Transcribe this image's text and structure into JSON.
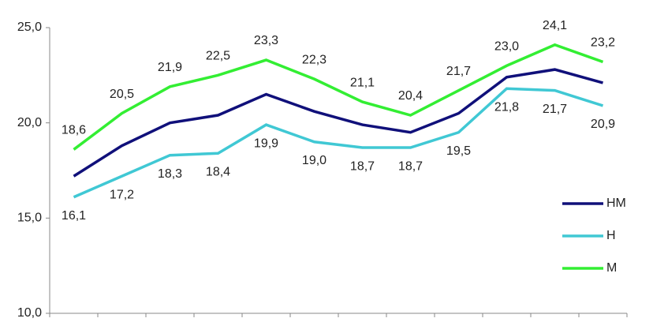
{
  "chart_data": {
    "type": "line",
    "categories": [
      null,
      null,
      null,
      null,
      null,
      null,
      null,
      null,
      null,
      null,
      null,
      null
    ],
    "ylim": [
      10,
      25
    ],
    "yticks": [
      {
        "value": 10,
        "label": "10,0"
      },
      {
        "value": 15,
        "label": "15,0"
      },
      {
        "value": 20,
        "label": "20,0"
      },
      {
        "value": 25,
        "label": "25,0"
      }
    ],
    "legend": "right",
    "series": [
      {
        "name": "HM",
        "color": "#10107a",
        "values": [
          17.2,
          18.8,
          20.0,
          20.4,
          21.5,
          20.6,
          19.9,
          19.5,
          20.5,
          22.4,
          22.8,
          22.1
        ]
      },
      {
        "name": "H",
        "color": "#40c8d4",
        "values": [
          16.1,
          17.2,
          18.3,
          18.4,
          19.9,
          19.0,
          18.7,
          18.7,
          19.5,
          21.8,
          21.7,
          20.9
        ],
        "value_labels": [
          "16,1",
          "17,2",
          "18,3",
          "18,4",
          "19,9",
          "19,0",
          "18,7",
          "18,7",
          "19,5",
          "21,8",
          "21,7",
          "20,9"
        ],
        "label_position": "below"
      },
      {
        "name": "M",
        "color": "#33ee33",
        "values": [
          18.6,
          20.5,
          21.9,
          22.5,
          23.3,
          22.3,
          21.1,
          20.4,
          21.7,
          23.0,
          24.1,
          23.2
        ],
        "value_labels": [
          "18,6",
          "20,5",
          "21,9",
          "22,5",
          "23,3",
          "22,3",
          "21,1",
          "20,4",
          "21,7",
          "23,0",
          "24,1",
          "23,2"
        ],
        "label_position": "above"
      }
    ]
  }
}
